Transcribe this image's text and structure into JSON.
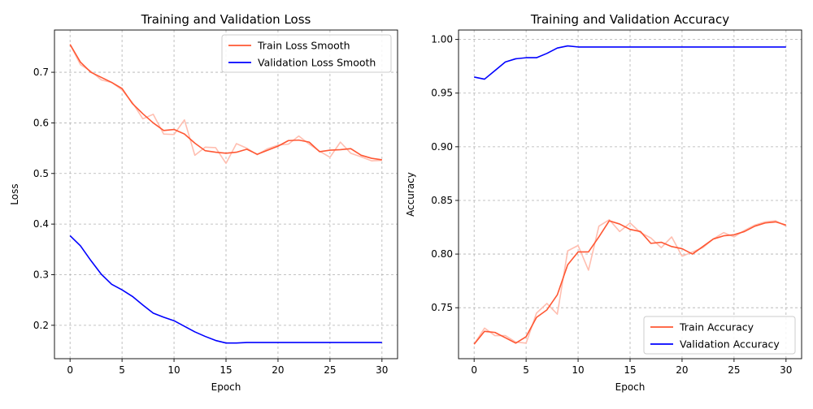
{
  "chart_data": [
    {
      "type": "line",
      "title": "Training and Validation Loss",
      "xlabel": "Epoch",
      "ylabel": "Loss",
      "xlim": [
        -1.5,
        31.5
      ],
      "ylim": [
        0.134,
        0.7835
      ],
      "xticks": [
        0,
        5,
        10,
        15,
        20,
        25,
        30
      ],
      "xtick_labels": [
        "0",
        "5",
        "10",
        "15",
        "20",
        "25",
        "30"
      ],
      "yticks": [
        0.2,
        0.3,
        0.4,
        0.5,
        0.6,
        0.7
      ],
      "ytick_labels": [
        "0.2",
        "0.3",
        "0.4",
        "0.5",
        "0.6",
        "0.7"
      ],
      "grid": true,
      "legend_position": "top-right",
      "x": [
        0,
        1,
        2,
        3,
        4,
        5,
        6,
        7,
        8,
        9,
        10,
        11,
        12,
        13,
        14,
        15,
        16,
        17,
        18,
        19,
        20,
        21,
        22,
        23,
        24,
        25,
        26,
        27,
        28,
        29,
        30
      ],
      "series": [
        {
          "name": "Train Loss Smooth",
          "in_legend": true,
          "color": "#ff5733",
          "values": [
            0.755,
            0.72,
            0.7,
            0.69,
            0.68,
            0.668,
            0.638,
            0.618,
            0.6,
            0.585,
            0.587,
            0.578,
            0.56,
            0.545,
            0.542,
            0.54,
            0.542,
            0.548,
            0.538,
            0.546,
            0.554,
            0.565,
            0.566,
            0.562,
            0.543,
            0.546,
            0.547,
            0.549,
            0.536,
            0.53,
            0.527
          ]
        },
        {
          "name": "Train Loss",
          "in_legend": false,
          "color": "#ffbeb0",
          "values": [
            0.755,
            0.715,
            0.702,
            0.685,
            0.68,
            0.665,
            0.64,
            0.608,
            0.617,
            0.578,
            0.577,
            0.606,
            0.536,
            0.552,
            0.551,
            0.52,
            0.559,
            0.55,
            0.537,
            0.549,
            0.556,
            0.558,
            0.574,
            0.558,
            0.544,
            0.532,
            0.562,
            0.54,
            0.533,
            0.525,
            0.526
          ]
        },
        {
          "name": "Validation Loss Smooth",
          "in_legend": true,
          "color": "#0000ff",
          "values": [
            0.377,
            0.357,
            0.328,
            0.301,
            0.281,
            0.27,
            0.257,
            0.24,
            0.224,
            0.216,
            0.209,
            0.198,
            0.187,
            0.178,
            0.17,
            0.165,
            0.165,
            0.166,
            0.166,
            0.166,
            0.166,
            0.166,
            0.166,
            0.166,
            0.166,
            0.166,
            0.166,
            0.166,
            0.166,
            0.166,
            0.166
          ]
        }
      ]
    },
    {
      "type": "line",
      "title": "Training and Validation Accuracy",
      "xlabel": "Epoch",
      "ylabel": "Accuracy",
      "xlim": [
        -1.5,
        31.5
      ],
      "ylim": [
        0.7025,
        1.0088
      ],
      "xticks": [
        0,
        5,
        10,
        15,
        20,
        25,
        30
      ],
      "xtick_labels": [
        "0",
        "5",
        "10",
        "15",
        "20",
        "25",
        "30"
      ],
      "yticks": [
        0.75,
        0.8,
        0.85,
        0.9,
        0.95,
        1.0
      ],
      "ytick_labels": [
        "0.75",
        "0.80",
        "0.85",
        "0.90",
        "0.95",
        "1.00"
      ],
      "grid": true,
      "legend_position": "bottom-right",
      "x": [
        0,
        1,
        2,
        3,
        4,
        5,
        6,
        7,
        8,
        9,
        10,
        11,
        12,
        13,
        14,
        15,
        16,
        17,
        18,
        19,
        20,
        21,
        22,
        23,
        24,
        25,
        26,
        27,
        28,
        29,
        30
      ],
      "series": [
        {
          "name": "Train Accuracy",
          "in_legend": true,
          "color": "#ff5733",
          "values": [
            0.716,
            0.728,
            0.727,
            0.722,
            0.717,
            0.723,
            0.741,
            0.748,
            0.762,
            0.79,
            0.802,
            0.802,
            0.816,
            0.831,
            0.828,
            0.823,
            0.821,
            0.81,
            0.811,
            0.807,
            0.805,
            0.8,
            0.807,
            0.814,
            0.817,
            0.818,
            0.821,
            0.826,
            0.829,
            0.83,
            0.827
          ]
        },
        {
          "name": "Train Accuracy (raw)",
          "in_legend": false,
          "color": "#ffbeb0",
          "values": [
            0.716,
            0.731,
            0.724,
            0.724,
            0.718,
            0.717,
            0.745,
            0.754,
            0.744,
            0.803,
            0.808,
            0.785,
            0.826,
            0.832,
            0.821,
            0.829,
            0.82,
            0.815,
            0.806,
            0.816,
            0.798,
            0.802,
            0.806,
            0.814,
            0.82,
            0.816,
            0.822,
            0.827,
            0.83,
            0.831,
            0.826
          ]
        },
        {
          "name": "Validation Accuracy",
          "in_legend": true,
          "color": "#0000ff",
          "values": [
            0.965,
            0.963,
            0.971,
            0.979,
            0.982,
            0.983,
            0.983,
            0.987,
            0.992,
            0.994,
            0.993,
            0.993,
            0.993,
            0.993,
            0.993,
            0.993,
            0.993,
            0.993,
            0.993,
            0.993,
            0.993,
            0.993,
            0.993,
            0.993,
            0.993,
            0.993,
            0.993,
            0.993,
            0.993,
            0.993,
            0.993
          ]
        }
      ]
    }
  ]
}
